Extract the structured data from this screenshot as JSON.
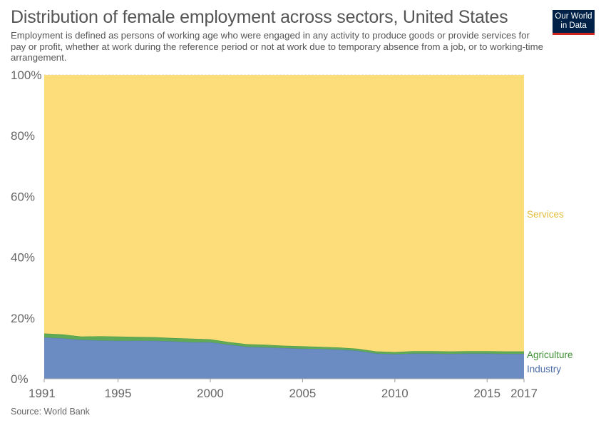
{
  "title": "Distribution of female employment across sectors, United States",
  "subtitle": "Employment is defined as persons of working age who were engaged in any activity to produce goods or provide services for pay or profit, whether at work during the reference period or not at work due to temporary absence from a job, or to working-time arrangement.",
  "logo": {
    "line1": "Our World",
    "line2": "in Data",
    "bg_color": "#002147",
    "accent_color": "#ce261e"
  },
  "source": "Source: World Bank",
  "chart_data": {
    "type": "area",
    "stacked": true,
    "x": [
      1991,
      1992,
      1993,
      1994,
      1995,
      1996,
      1997,
      1998,
      1999,
      2000,
      2001,
      2002,
      2003,
      2004,
      2005,
      2006,
      2007,
      2008,
      2009,
      2010,
      2011,
      2012,
      2013,
      2014,
      2015,
      2016,
      2017
    ],
    "series": [
      {
        "name": "Industry",
        "color": "#6b8cc2",
        "values": [
          13.6,
          13.3,
          12.8,
          12.6,
          12.5,
          12.5,
          12.5,
          12.3,
          12.0,
          12.0,
          11.2,
          10.5,
          10.3,
          10.1,
          9.9,
          9.8,
          9.6,
          9.2,
          8.3,
          8.1,
          8.3,
          8.3,
          8.2,
          8.3,
          8.3,
          8.2,
          8.2
        ]
      },
      {
        "name": "Agriculture",
        "color": "#5fa957",
        "values": [
          1.3,
          1.3,
          1.1,
          1.4,
          1.4,
          1.3,
          1.2,
          1.1,
          1.2,
          1.0,
          0.9,
          0.9,
          0.9,
          0.8,
          0.8,
          0.7,
          0.7,
          0.7,
          0.7,
          0.7,
          0.8,
          0.8,
          0.8,
          0.8,
          0.8,
          0.8,
          0.8
        ]
      },
      {
        "name": "Services",
        "color": "#fddd79",
        "values": [
          85.1,
          85.4,
          86.1,
          86.0,
          86.1,
          86.2,
          86.3,
          86.6,
          86.8,
          87.0,
          87.9,
          88.6,
          88.8,
          89.1,
          89.3,
          89.5,
          89.7,
          90.1,
          91.0,
          91.2,
          90.9,
          90.9,
          91.0,
          90.9,
          90.9,
          91.0,
          91.0
        ]
      }
    ],
    "ylim": [
      0,
      100
    ],
    "y_ticks": [
      0,
      20,
      40,
      60,
      80,
      100
    ],
    "y_tick_labels": [
      "0%",
      "20%",
      "40%",
      "60%",
      "80%",
      "100%"
    ],
    "x_ticks": [
      1991,
      1995,
      2000,
      2005,
      2010,
      2015,
      2017
    ],
    "x_tick_labels": [
      "1991",
      "1995",
      "2000",
      "2005",
      "2010",
      "2015",
      "2017"
    ],
    "xlim": [
      1991,
      2017
    ],
    "grid": true,
    "legend": "inline-right"
  }
}
